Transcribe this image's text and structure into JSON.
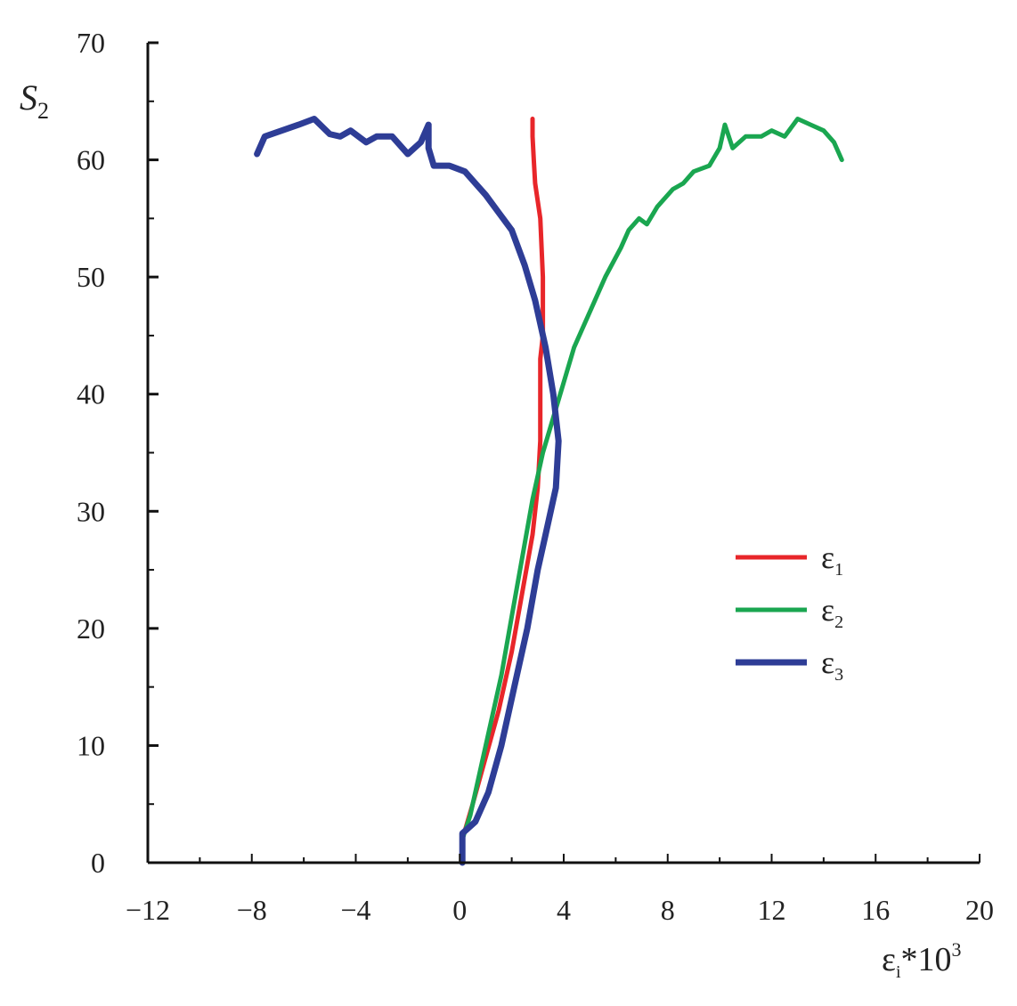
{
  "chart_data": {
    "type": "line",
    "title": "",
    "xlabel": {
      "base": "ε",
      "subscript": "i",
      "suffix": "*10",
      "superscript": "3"
    },
    "ylabel": {
      "base": "S",
      "subscript": "2"
    },
    "xlim": [
      -12,
      20
    ],
    "ylim": [
      0,
      70
    ],
    "x_ticks": [
      -12,
      -8,
      -4,
      0,
      4,
      8,
      12,
      16,
      20
    ],
    "x_tick_labels": [
      "−12",
      "−8",
      "−4",
      "0",
      "4",
      "8",
      "12",
      "16",
      "20"
    ],
    "y_ticks": [
      0,
      10,
      20,
      30,
      40,
      50,
      60,
      70
    ],
    "y_tick_labels": [
      "0",
      "10",
      "20",
      "30",
      "40",
      "50",
      "60",
      "70"
    ],
    "grid": false,
    "legend_position": "right",
    "series": [
      {
        "name": {
          "base": "ε",
          "subscript": "1"
        },
        "color": "#e8262a",
        "points": [
          [
            0.1,
            0
          ],
          [
            0.1,
            2
          ],
          [
            0.5,
            5
          ],
          [
            1.0,
            9
          ],
          [
            1.5,
            13
          ],
          [
            2.0,
            18
          ],
          [
            2.4,
            23
          ],
          [
            2.8,
            28
          ],
          [
            3.0,
            32
          ],
          [
            3.1,
            36
          ],
          [
            3.1,
            40
          ],
          [
            3.1,
            43
          ],
          [
            3.2,
            45
          ],
          [
            3.2,
            50
          ],
          [
            3.1,
            55
          ],
          [
            2.9,
            58
          ],
          [
            2.85,
            60
          ],
          [
            2.8,
            62
          ],
          [
            2.8,
            63.5
          ]
        ]
      },
      {
        "name": {
          "base": "ε",
          "subscript": "2"
        },
        "color": "#1aa650",
        "points": [
          [
            0.1,
            0
          ],
          [
            0.1,
            2
          ],
          [
            0.4,
            4
          ],
          [
            0.8,
            8
          ],
          [
            1.2,
            12
          ],
          [
            1.6,
            16
          ],
          [
            2.0,
            21
          ],
          [
            2.4,
            26
          ],
          [
            2.8,
            31
          ],
          [
            3.2,
            35
          ],
          [
            3.6,
            38
          ],
          [
            4.0,
            41
          ],
          [
            4.4,
            44
          ],
          [
            5.0,
            47
          ],
          [
            5.6,
            50
          ],
          [
            6.2,
            52.5
          ],
          [
            6.5,
            54
          ],
          [
            6.9,
            55
          ],
          [
            7.2,
            54.5
          ],
          [
            7.6,
            56
          ],
          [
            8.2,
            57.5
          ],
          [
            8.6,
            58
          ],
          [
            9.0,
            59
          ],
          [
            9.6,
            59.5
          ],
          [
            10.0,
            61
          ],
          [
            10.2,
            63
          ],
          [
            10.5,
            61
          ],
          [
            11.0,
            62
          ],
          [
            11.6,
            62
          ],
          [
            12.0,
            62.5
          ],
          [
            12.5,
            62
          ],
          [
            13.0,
            63.5
          ],
          [
            13.5,
            63
          ],
          [
            14.0,
            62.5
          ],
          [
            14.4,
            61.5
          ],
          [
            14.7,
            60
          ]
        ]
      },
      {
        "name": {
          "base": "ε",
          "subscript": "3"
        },
        "color": "#2e3d96",
        "points": [
          [
            0.1,
            0
          ],
          [
            0.1,
            2.5
          ],
          [
            0.6,
            3.5
          ],
          [
            1.1,
            6
          ],
          [
            1.6,
            10
          ],
          [
            2.1,
            15
          ],
          [
            2.6,
            20
          ],
          [
            3.0,
            25
          ],
          [
            3.3,
            28
          ],
          [
            3.7,
            32
          ],
          [
            3.8,
            36
          ],
          [
            3.6,
            40
          ],
          [
            3.3,
            44
          ],
          [
            2.9,
            48
          ],
          [
            2.5,
            51
          ],
          [
            2.0,
            54
          ],
          [
            1.5,
            55.5
          ],
          [
            1.0,
            57
          ],
          [
            0.6,
            58
          ],
          [
            0.2,
            59
          ],
          [
            -0.4,
            59.5
          ],
          [
            -1.0,
            59.5
          ],
          [
            -1.2,
            61
          ],
          [
            -1.2,
            63
          ],
          [
            -1.5,
            61.5
          ],
          [
            -2.0,
            60.5
          ],
          [
            -2.6,
            62
          ],
          [
            -3.2,
            62
          ],
          [
            -3.6,
            61.5
          ],
          [
            -4.2,
            62.5
          ],
          [
            -4.6,
            62
          ],
          [
            -5.0,
            62.2
          ],
          [
            -5.6,
            63.5
          ],
          [
            -6.2,
            63
          ],
          [
            -7.5,
            62
          ],
          [
            -7.8,
            60.5
          ]
        ]
      }
    ]
  }
}
